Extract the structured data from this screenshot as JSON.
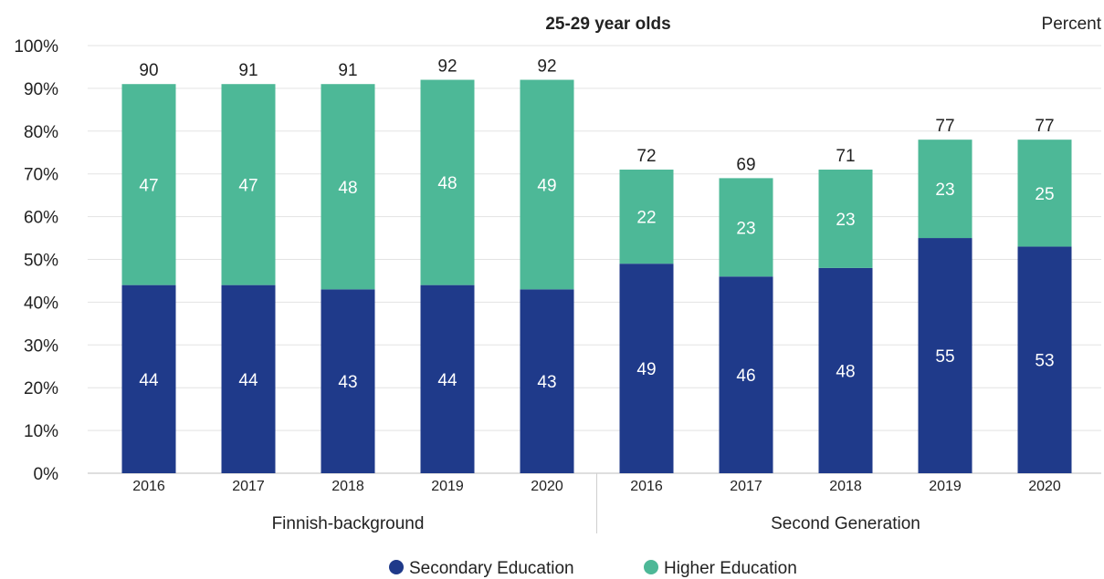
{
  "chart_data": {
    "type": "bar",
    "stacked": true,
    "title": "25-29 year olds",
    "unit_label": "Percent",
    "yticks": [
      "0%",
      "10%",
      "20%",
      "30%",
      "40%",
      "50%",
      "60%",
      "70%",
      "80%",
      "90%",
      "100%"
    ],
    "ylim": [
      0,
      100
    ],
    "grid": true,
    "legend_position": "bottom",
    "groups": [
      {
        "name": "Finnish-background",
        "categories": [
          "2016",
          "2017",
          "2018",
          "2019",
          "2020"
        ]
      },
      {
        "name": "Second Generation",
        "categories": [
          "2016",
          "2017",
          "2018",
          "2019",
          "2020"
        ]
      }
    ],
    "series": [
      {
        "name": "Secondary Education",
        "color": "#1f3a8a",
        "values": [
          44,
          44,
          43,
          44,
          43,
          49,
          46,
          48,
          55,
          53
        ]
      },
      {
        "name": "Higher Education",
        "color": "#4db897",
        "values": [
          47,
          47,
          48,
          48,
          49,
          22,
          23,
          23,
          23,
          25
        ]
      }
    ],
    "totals": [
      90,
      91,
      91,
      92,
      92,
      72,
      69,
      71,
      77,
      77
    ]
  }
}
